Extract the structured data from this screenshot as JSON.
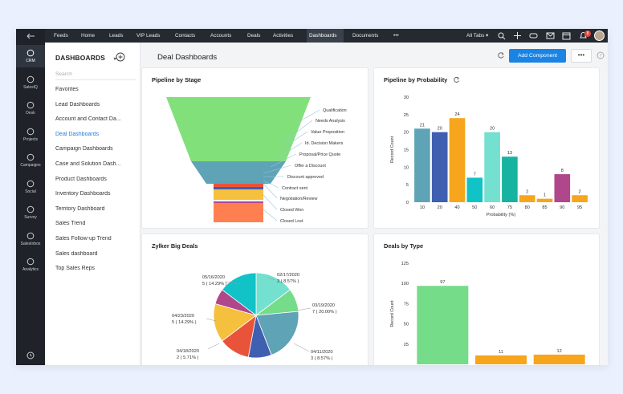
{
  "rail": {
    "items": [
      {
        "label": "CRM",
        "icon": "crm-icon"
      },
      {
        "label": "SalesIQ",
        "icon": "salesiq-icon"
      },
      {
        "label": "Desk",
        "icon": "desk-icon"
      },
      {
        "label": "Projects",
        "icon": "projects-icon"
      },
      {
        "label": "Campaigns",
        "icon": "campaigns-icon"
      },
      {
        "label": "Social",
        "icon": "social-icon"
      },
      {
        "label": "Survey",
        "icon": "survey-icon"
      },
      {
        "label": "SalesInbox",
        "icon": "salesinbox-icon"
      },
      {
        "label": "Analytics",
        "icon": "analytics-icon"
      }
    ]
  },
  "topbar": {
    "nav": [
      "Feeds",
      "Home",
      "Leads",
      "VIP Leads",
      "Contacts",
      "Accounts",
      "Deals",
      "Activities",
      "Dashboards",
      "Documents",
      "•••"
    ],
    "active": "Dashboards",
    "all_tabs": "All Tabs",
    "notification_count": "8"
  },
  "sidebar": {
    "title": "DASHBOARDS",
    "search_placeholder": "Search",
    "items": [
      "Favorites",
      "Lead Dashboards",
      "Account and Contact Da...",
      "Deal Dashboards",
      "Campaign Dashboards",
      "Case and Solution Dash...",
      "Product Dashboards",
      "Inventory Dashboards",
      "Territory Dashboard",
      "Sales Trend",
      "Sales Follow-up Trend",
      "Sales dashboard",
      "Top Sales Reps"
    ],
    "active_index": 3
  },
  "main": {
    "title": "Deal Dashboards",
    "add_component": "Add Component",
    "more": "•••"
  },
  "colors": {
    "accent": "#1a84e5",
    "teal": "#5fa3b7",
    "navy": "#3f5fb0",
    "orange": "#f7a51c",
    "cyan": "#11c2c7",
    "mint": "#74e0cf",
    "teal2": "#16b3a0",
    "purple": "#b0478a",
    "green": "#75dc8a"
  },
  "chart_data": [
    {
      "type": "funnel",
      "title": "Pipeline by Stage",
      "stages": [
        "Qualification",
        "Needs Analysis",
        "Value Proposition",
        "Id. Decision Makers",
        "Proposal/Price Quote",
        "Offer a Discount",
        "Discount approved",
        "Contract sent",
        "Negotiation/Review",
        "Closed Won",
        "Closed Lost"
      ]
    },
    {
      "type": "bar",
      "title": "Pipeline by Probability",
      "categories": [
        "10",
        "20",
        "40",
        "50",
        "60",
        "75",
        "80",
        "85",
        "90",
        "95"
      ],
      "values": [
        21,
        20,
        24,
        7,
        20,
        13,
        2,
        1,
        8,
        2
      ],
      "colors": [
        "#5fa3b7",
        "#3f5fb0",
        "#f7a51c",
        "#11c2c7",
        "#74e0cf",
        "#16b3a0",
        "#f7a51c",
        "#f7a51c",
        "#b0478a",
        "#f7a51c"
      ],
      "xlabel": "Probability (%)",
      "ylabel": "Record Count",
      "yticks": [
        0,
        5,
        10,
        15,
        20,
        25,
        30
      ],
      "ylim": [
        0,
        30
      ]
    },
    {
      "type": "pie",
      "title": "Zylker Big Deals",
      "slices": [
        {
          "label": "05/16/2020",
          "value_text": "5 ( 14.29% )",
          "value": 14.29,
          "color": "#74e0cf"
        },
        {
          "label": "02/17/2020",
          "value_text": "3 ( 8.57% )",
          "value": 8.57,
          "color": "#75dc8a"
        },
        {
          "label": "03/19/2020",
          "value_text": "7 ( 20.00% )",
          "value": 20.0,
          "color": "#5fa3b7"
        },
        {
          "label": "04/11/2020",
          "value_text": "3 ( 8.57% )",
          "value": 8.57,
          "color": "#3f5fb0"
        },
        {
          "label": "",
          "value_text": "",
          "value": 11.43,
          "color": "#e8533a"
        },
        {
          "label": "",
          "value_text": "",
          "value": 14.29,
          "color": "#f4c03d"
        },
        {
          "label": "04/18/2020",
          "value_text": "2 ( 5.71% )",
          "value": 5.71,
          "color": "#b0478a"
        },
        {
          "label": "04/23/2020",
          "value_text": "5 ( 14.29% )",
          "value": 14.29,
          "color": "#11c2c7"
        }
      ]
    },
    {
      "type": "bar",
      "title": "Deals by Type",
      "categories": [
        "",
        "",
        ""
      ],
      "values": [
        97,
        11,
        12
      ],
      "colors": [
        "#75dc8a",
        "#f7a51c",
        "#f7a51c"
      ],
      "ylabel": "Record Count",
      "yticks": [
        25,
        50,
        75,
        100,
        125
      ],
      "ylim": [
        0,
        125
      ]
    }
  ]
}
